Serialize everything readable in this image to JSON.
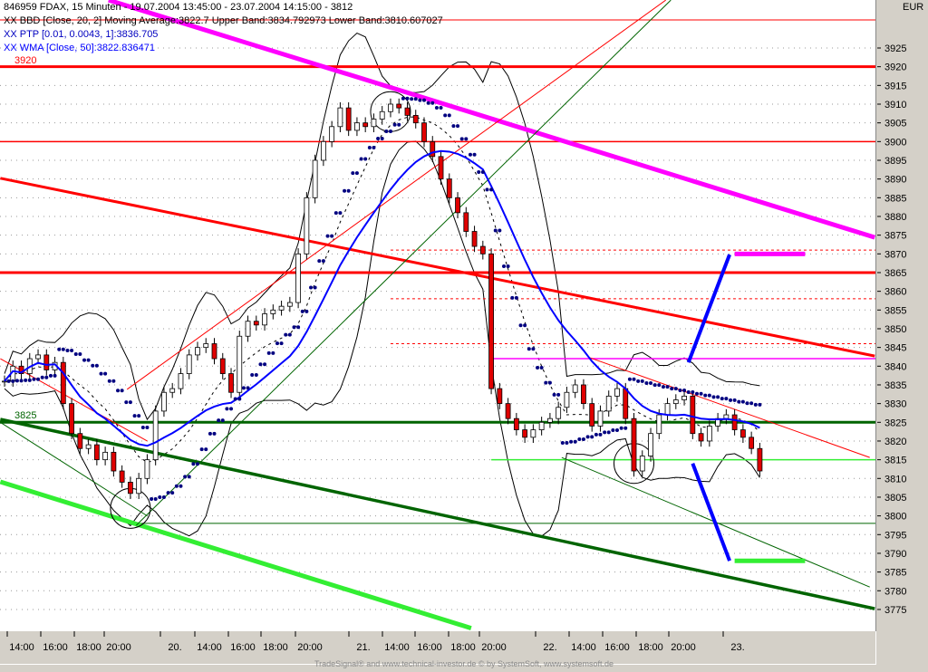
{
  "header": {
    "title": "846959  FDAX, 15 Minuten - 19.07.2004 13:45:00 - 23.07.2004 14:15:00 - 3812",
    "bbd": "XX BBD [Close, 20, 2] Moving Average:3822.7 Upper Band:3834.792973 Lower Band:3810.607027",
    "ptp": "XX PTP [0.01, 0.0043, 1]:3836.705",
    "wma": "XX WMA [Close, 50]:3822.836471",
    "level_3920": "3920",
    "level_3825": "3825"
  },
  "currency": "EUR",
  "footer": "TradeSignal® and www.technical-investor.de © by SystemSoft, www.systemsoft.de",
  "colors": {
    "up": "#ffffff",
    "down": "#e00000",
    "wma": "#0000ff",
    "ptp": "#000080",
    "magenta": "#ff00ff",
    "red": "#ff0000",
    "darkgreen": "#006400",
    "green": "#33ee33"
  },
  "chart_data": {
    "type": "candlestick",
    "ylim": [
      3771,
      3938
    ],
    "yticks": [
      3925,
      3920,
      3915,
      3910,
      3905,
      3900,
      3895,
      3890,
      3885,
      3880,
      3875,
      3870,
      3865,
      3860,
      3855,
      3850,
      3845,
      3840,
      3835,
      3830,
      3825,
      3820,
      3815,
      3810,
      3805,
      3800,
      3795,
      3790,
      3785,
      3780,
      3775
    ],
    "xticks": [
      "14:00",
      "16:00",
      "18:00",
      "20:00",
      "20.",
      "14:00",
      "16:00",
      "18:00",
      "20:00",
      "21.",
      "14:00",
      "16:00",
      "18:00",
      "20:00",
      "22.",
      "14:00",
      "16:00",
      "18:00",
      "20:00",
      "23."
    ],
    "closes": [
      3836,
      3840,
      3838,
      3842,
      3843,
      3839,
      3841,
      3830,
      3822,
      3818,
      3819,
      3815,
      3817,
      3812,
      3809,
      3806,
      3810,
      3815,
      3828,
      3833,
      3834,
      3838,
      3843,
      3845,
      3846,
      3842,
      3838,
      3833,
      3848,
      3852,
      3851,
      3854,
      3855,
      3856,
      3857,
      3870,
      3885,
      3895,
      3900,
      3904,
      3909,
      3903,
      3905,
      3904,
      3906,
      3908,
      3910,
      3909,
      3907,
      3905,
      3900,
      3896,
      3890,
      3885,
      3881,
      3876,
      3872,
      3870,
      3834,
      3830,
      3826,
      3823,
      3821,
      3823,
      3825,
      3826,
      3829,
      3833,
      3835,
      3830,
      3824,
      3828,
      3832,
      3834,
      3826,
      3812,
      3816,
      3822,
      3827,
      3830,
      3831,
      3832,
      3822,
      3820,
      3824,
      3826,
      3827,
      3823,
      3821,
      3818,
      3812
    ],
    "hlines": [
      {
        "price": 3932.5,
        "color": "#ff0000",
        "width": 1
      },
      {
        "price": 3920,
        "color": "#ff0000",
        "width": 3
      },
      {
        "price": 3900,
        "color": "#ff0000",
        "width": 1.5
      },
      {
        "price": 3865,
        "color": "#ff0000",
        "width": 3
      },
      {
        "price": 3825,
        "color": "#006400",
        "width": 3
      },
      {
        "price": 3842,
        "color": "#ff00ff",
        "width": 1.5,
        "from": 58
      },
      {
        "price": 3815,
        "color": "#33ee33",
        "width": 1.5,
        "from": 58
      },
      {
        "price": 3798,
        "color": "#006400",
        "width": 1,
        "from": 16
      },
      {
        "price": 3871,
        "color": "#ff0000",
        "width": 1,
        "from": 46,
        "dash": true
      },
      {
        "price": 3858,
        "color": "#ff0000",
        "width": 1,
        "from": 46,
        "dash": true
      },
      {
        "price": 3846,
        "color": "#ff0000",
        "width": 1,
        "from": 46,
        "dash": true
      }
    ],
    "trendlines": [
      {
        "from": [
          12.4,
          3937.8
        ],
        "to": [
          103.7,
          3874.4
        ],
        "color": "#ff00ff",
        "width": 5
      },
      {
        "from": [
          -0.5,
          3890.2
        ],
        "to": [
          103.7,
          3842.7
        ],
        "color": "#ff0000",
        "width": 3
      },
      {
        "from": [
          -0.5,
          3825.8
        ],
        "to": [
          103.7,
          3775.2
        ],
        "color": "#006400",
        "width": 3.5
      },
      {
        "from": [
          -0.5,
          3809.1
        ],
        "to": [
          55.6,
          3770
        ],
        "color": "#33ee33",
        "width": 5
      },
      {
        "from": [
          14.6,
          3833.8
        ],
        "to": [
          78.8,
          3937.8
        ],
        "color": "#ff0000",
        "width": 1
      },
      {
        "from": [
          15.7,
          3797.5
        ],
        "to": [
          79.4,
          3937.8
        ],
        "color": "#006400",
        "width": 1
      },
      {
        "from": [
          -0.5,
          3842
        ],
        "to": [
          17,
          3820
        ],
        "color": "#ff0000",
        "width": 1
      },
      {
        "from": [
          -0.5,
          3825
        ],
        "to": [
          17,
          3800
        ],
        "color": "#006400",
        "width": 1
      },
      {
        "from": [
          69.7,
          3842.3
        ],
        "to": [
          103.1,
          3815.6
        ],
        "color": "#ff0000",
        "width": 1
      },
      {
        "from": [
          66.4,
          3815.6
        ],
        "to": [
          103.1,
          3781
        ],
        "color": "#006400",
        "width": 1
      },
      {
        "from": [
          81.5,
          3841
        ],
        "to": [
          86.4,
          3869.8
        ],
        "color": "#0000ff",
        "width": 4
      },
      {
        "from": [
          82,
          3814
        ],
        "to": [
          86.4,
          3788
        ],
        "color": "#0000ff",
        "width": 4
      },
      {
        "from": [
          87,
          3870
        ],
        "to": [
          95.4,
          3870
        ],
        "color": "#ff00ff",
        "width": 5
      },
      {
        "from": [
          87,
          3788
        ],
        "to": [
          95.4,
          3788
        ],
        "color": "#33ee33",
        "width": 5
      }
    ],
    "circles": [
      [
        15,
        3802
      ],
      [
        46,
        3908
      ],
      [
        75,
        3814
      ]
    ]
  }
}
